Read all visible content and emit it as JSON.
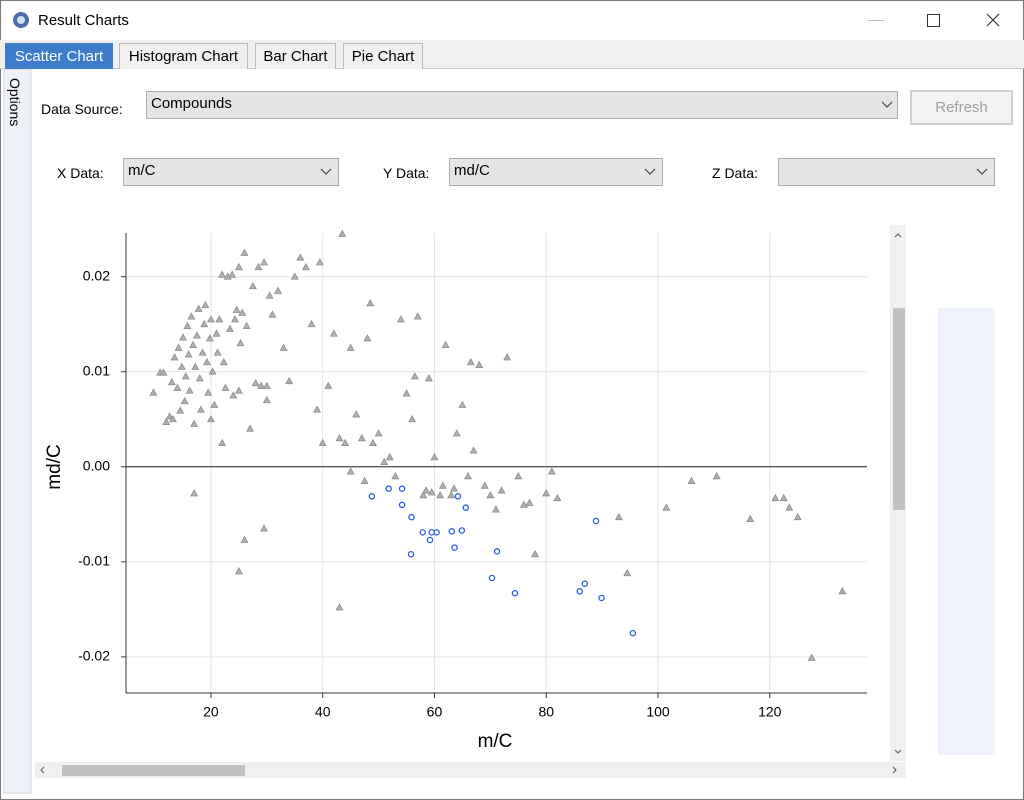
{
  "window": {
    "title": "Result Charts"
  },
  "tabs": [
    "Scatter Chart",
    "Histogram Chart",
    "Bar Chart",
    "Pie Chart"
  ],
  "side_tab": "Options",
  "controls": {
    "data_source_label": "Data Source:",
    "data_source_value": "Compounds",
    "refresh": "Refresh",
    "x_label": "X Data:",
    "x_value": "m/C",
    "y_label": "Y Data:",
    "y_value": "md/C",
    "z_label": "Z Data:"
  },
  "chart_data": {
    "type": "scatter",
    "x_label": "m/C",
    "y_label": "md/C",
    "xlim": [
      4.8,
      137.4
    ],
    "ylim": [
      -0.0238,
      0.0246
    ],
    "xticks": [
      20,
      40,
      60,
      80,
      100,
      120
    ],
    "yticks": [
      0.02,
      0.01,
      {
        "value": 0,
        "label": "0.00"
      },
      -0.01,
      -0.02
    ],
    "grid": true,
    "zero_line": true,
    "series": [
      {
        "color": "#8c8c8c",
        "marker": "triangle",
        "x": [
          9.7,
          10.9,
          11.5,
          12.0,
          12.6,
          13.0,
          13.2,
          13.5,
          14.0,
          14.2,
          14.5,
          14.8,
          15.0,
          15.3,
          15.5,
          15.8,
          16.0,
          16.2,
          16.5,
          16.8,
          17.0,
          17.2,
          17.5,
          17.8,
          18.0,
          18.2,
          18.5,
          18.8,
          19.0,
          19.3,
          19.5,
          19.8,
          20.0,
          20.3,
          20.6,
          21.0,
          21.2,
          21.5,
          22.0,
          22.3,
          22.6,
          23.0,
          23.4,
          23.8,
          24.0,
          24.3,
          24.6,
          25.0,
          25.3,
          25.6,
          26.0,
          26.4,
          27.0,
          27.5,
          28.0,
          28.5,
          29.0,
          29.5,
          30.0,
          30.5,
          31.0,
          32.0,
          33.0,
          34.0,
          35.0,
          36.0,
          37.0,
          38.0,
          39.0,
          39.5,
          40.0,
          41.0,
          42.0,
          43.0,
          43.5,
          44.0,
          45.0,
          46.0,
          47.0,
          48.0,
          48.5,
          49.0,
          50.0,
          51.0,
          52.0,
          53.0,
          54.0,
          55.0,
          56.0,
          56.5,
          57.0,
          58.0,
          59.0,
          59.5,
          60.0,
          61.0,
          62.0,
          63.0,
          64.0,
          65.0,
          66.0,
          66.5,
          67.0,
          68.0,
          69.0,
          70.0,
          71.0,
          72.0,
          73.0,
          75.0,
          77.0,
          78.0,
          80.0,
          81.0,
          82.0,
          93.0,
          94.5,
          101.5,
          106.0,
          110.5,
          116.5,
          121.0,
          122.5,
          123.5,
          125.0,
          127.5,
          133.0,
          17.0,
          25.0,
          26.0,
          29.5,
          43.0,
          22.0,
          25.0,
          30.0,
          20.0,
          45.0,
          47.5,
          58.5,
          61.5,
          63.5,
          76.0
        ],
        "values": [
          0.0078,
          0.0099,
          0.0099,
          0.0047,
          0.0053,
          0.0089,
          0.005,
          0.0115,
          0.0083,
          0.0125,
          0.0059,
          0.0105,
          0.0136,
          0.0069,
          0.0095,
          0.0148,
          0.0118,
          0.008,
          0.0158,
          0.0128,
          0.0045,
          0.0105,
          0.0138,
          0.0166,
          0.0093,
          0.006,
          0.012,
          0.015,
          0.017,
          0.011,
          0.0078,
          0.0135,
          0.0155,
          0.01,
          0.0065,
          0.014,
          0.012,
          0.0155,
          0.0202,
          0.011,
          0.0083,
          0.02,
          0.0145,
          0.0202,
          0.0075,
          0.0155,
          0.0165,
          0.021,
          0.013,
          0.0162,
          0.0225,
          0.0148,
          0.004,
          0.019,
          0.0088,
          0.021,
          0.0085,
          0.0215,
          0.007,
          0.018,
          0.016,
          0.0185,
          0.0125,
          0.009,
          0.02,
          0.022,
          0.021,
          0.015,
          0.006,
          0.0215,
          0.0025,
          0.0085,
          0.014,
          0.003,
          0.0245,
          0.0025,
          0.0125,
          0.0055,
          0.003,
          0.0135,
          0.0172,
          0.0025,
          0.0035,
          0.0005,
          0.001,
          -0.001,
          0.0155,
          0.0077,
          0.005,
          0.0095,
          0.0158,
          -0.003,
          0.0093,
          -0.0027,
          0.001,
          -0.003,
          0.0128,
          -0.003,
          0.0035,
          0.0065,
          -0.001,
          0.011,
          0.0017,
          0.0107,
          -0.002,
          -0.003,
          -0.0045,
          -0.0025,
          0.0115,
          -0.001,
          -0.0038,
          -0.0092,
          -0.0028,
          -0.0005,
          -0.0033,
          -0.0053,
          -0.0112,
          -0.0043,
          -0.0015,
          -0.001,
          -0.0055,
          -0.0033,
          -0.0033,
          -0.0043,
          -0.0053,
          -0.0201,
          -0.0131,
          -0.0028,
          -0.011,
          -0.0077,
          -0.0065,
          -0.0148,
          0.0025,
          0.008,
          0.0085,
          0.005,
          -0.0005,
          -0.0015,
          -0.0025,
          -0.002,
          -0.0023,
          -0.004
        ]
      },
      {
        "color": "#2b5ce6",
        "marker": "circle",
        "x": [
          48.8,
          51.8,
          54.2,
          54.2,
          55.9,
          55.8,
          57.9,
          59.2,
          59.5,
          60.4,
          63.1,
          63.6,
          64.2,
          64.9,
          65.6,
          70.3,
          71.2,
          74.4,
          86.0,
          86.9,
          88.9,
          89.9,
          95.5
        ],
        "values": [
          -0.0031,
          -0.0023,
          -0.0023,
          -0.004,
          -0.0053,
          -0.0092,
          -0.0069,
          -0.0077,
          -0.0069,
          -0.0069,
          -0.0068,
          -0.0085,
          -0.0031,
          -0.0067,
          -0.0043,
          -0.0117,
          -0.0089,
          -0.0133,
          -0.0131,
          -0.0123,
          -0.0057,
          -0.0138,
          -0.0175
        ]
      }
    ]
  }
}
